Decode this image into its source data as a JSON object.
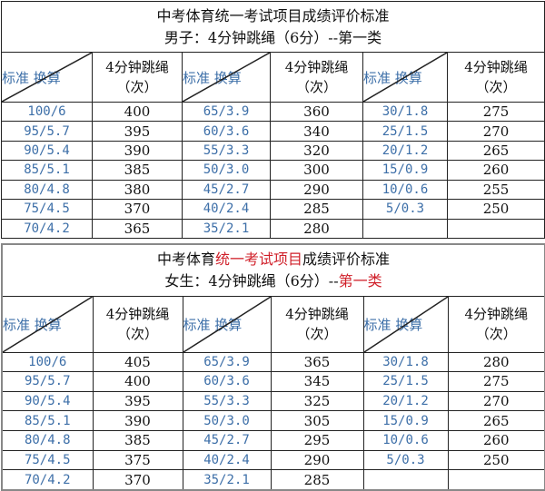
{
  "tables": [
    {
      "title_parts": [
        {
          "text": "中考体育统一考试项目成绩评价标准",
          "red": false
        }
      ],
      "subtitle_parts": [
        {
          "text": "男子：4分钟跳绳（6分）--第一类",
          "red": false
        }
      ],
      "diag_label": "标准 换算",
      "col_header": [
        "4分钟跳绳",
        "（次）"
      ],
      "rows": [
        [
          "100/6",
          "400",
          "65/3.9",
          "360",
          "30/1.8",
          "275"
        ],
        [
          "95/5.7",
          "395",
          "60/3.6",
          "340",
          "25/1.5",
          "270"
        ],
        [
          "90/5.4",
          "390",
          "55/3.3",
          "320",
          "20/1.2",
          "265"
        ],
        [
          "85/5.1",
          "385",
          "50/3.0",
          "300",
          "15/0.9",
          "260"
        ],
        [
          "80/4.8",
          "380",
          "45/2.7",
          "290",
          "10/0.6",
          "255"
        ],
        [
          "75/4.5",
          "370",
          "40/2.4",
          "285",
          "5/0.3",
          "250"
        ],
        [
          "70/4.2",
          "365",
          "35/2.1",
          "280",
          "",
          ""
        ]
      ]
    },
    {
      "title_parts": [
        {
          "text": "中考体育",
          "red": false
        },
        {
          "text": "统一考试项目",
          "red": true
        },
        {
          "text": "成绩评价标准",
          "red": false
        }
      ],
      "subtitle_parts": [
        {
          "text": "女生：4分钟跳绳（6分）--",
          "red": false
        },
        {
          "text": "第一类",
          "red": true
        }
      ],
      "diag_label": "标准 换算",
      "col_header": [
        "4分钟跳绳",
        "（次）"
      ],
      "rows": [
        [
          "100/6",
          "405",
          "65/3.9",
          "365",
          "30/1.8",
          "280"
        ],
        [
          "95/5.7",
          "400",
          "60/3.6",
          "345",
          "25/1.5",
          "275"
        ],
        [
          "90/5.4",
          "395",
          "55/3.3",
          "325",
          "20/1.2",
          "270"
        ],
        [
          "85/5.1",
          "390",
          "50/3.0",
          "305",
          "15/0.9",
          "265"
        ],
        [
          "80/4.8",
          "385",
          "45/2.7",
          "295",
          "10/0.6",
          "260"
        ],
        [
          "75/4.5",
          "375",
          "40/2.4",
          "290",
          "5/0.3",
          "250"
        ],
        [
          "70/4.2",
          "370",
          "35/2.1",
          "285",
          "",
          ""
        ]
      ]
    }
  ],
  "colors": {
    "standard_text": "#3d6fa8",
    "highlight_red": "#d0202a"
  }
}
